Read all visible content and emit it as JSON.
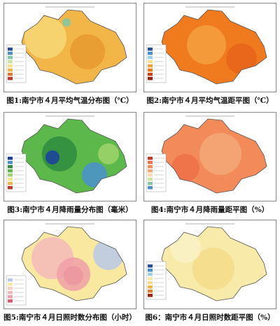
{
  "figures": [
    {
      "caption": "图1:南宁市４月平均气温分布图（℃）"
    },
    {
      "caption": "图2:南宁市４月平均气温距平图（℃）"
    },
    {
      "caption": "图3:南宁市４月降雨量分布图（毫米）"
    },
    {
      "caption": "图4:南宁市４月降雨量距平图（%）"
    },
    {
      "caption": "图5:南宁市４月日照时数分布图（小时）"
    },
    {
      "caption": "图6：南宁市４月日照时数距平图（%）"
    }
  ]
}
